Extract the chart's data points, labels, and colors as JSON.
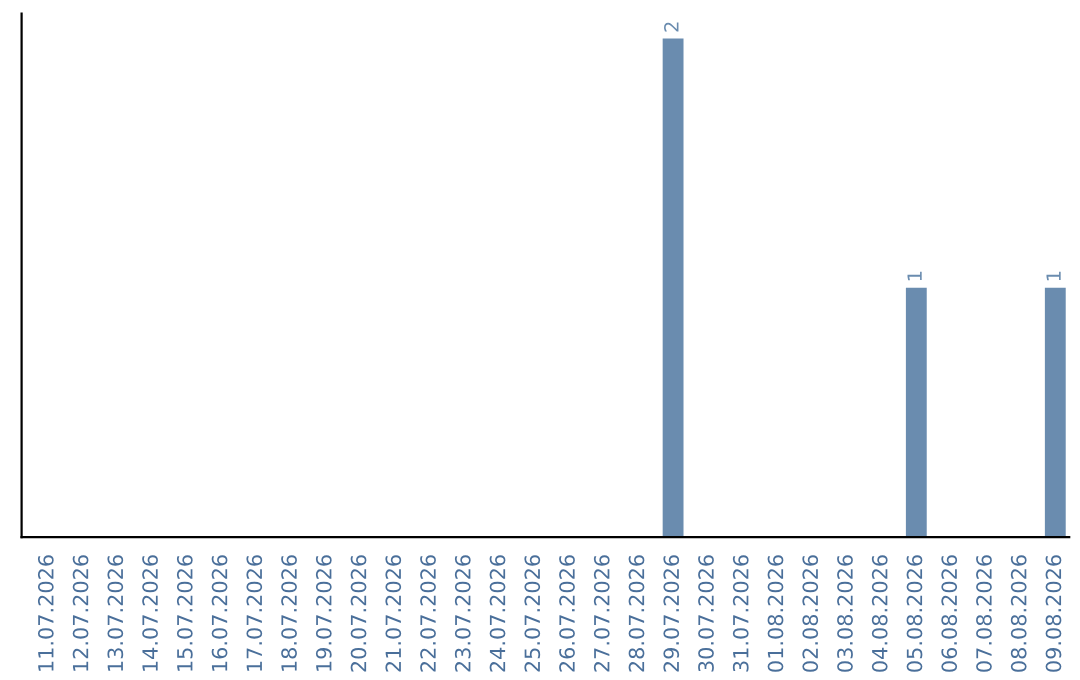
{
  "chart_data": {
    "type": "bar",
    "categories": [
      "11.07.2026",
      "12.07.2026",
      "13.07.2026",
      "14.07.2026",
      "15.07.2026",
      "16.07.2026",
      "17.07.2026",
      "18.07.2026",
      "19.07.2026",
      "20.07.2026",
      "21.07.2026",
      "22.07.2026",
      "23.07.2026",
      "24.07.2026",
      "25.07.2026",
      "26.07.2026",
      "27.07.2026",
      "28.07.2026",
      "29.07.2026",
      "30.07.2026",
      "31.07.2026",
      "01.08.2026",
      "02.08.2026",
      "03.08.2026",
      "04.08.2026",
      "05.08.2026",
      "06.08.2026",
      "07.08.2026",
      "08.08.2026",
      "09.08.2026"
    ],
    "values": [
      null,
      null,
      null,
      null,
      null,
      null,
      null,
      null,
      null,
      null,
      null,
      null,
      null,
      null,
      null,
      null,
      null,
      null,
      2,
      null,
      null,
      null,
      null,
      null,
      null,
      1,
      null,
      null,
      null,
      1
    ],
    "value_labels": [
      null,
      null,
      null,
      null,
      null,
      null,
      null,
      null,
      null,
      null,
      null,
      null,
      null,
      null,
      null,
      null,
      null,
      null,
      "2",
      null,
      null,
      null,
      null,
      null,
      null,
      "1",
      null,
      null,
      null,
      "1"
    ],
    "color": "#6a8caf",
    "grid": false,
    "legend": false
  }
}
